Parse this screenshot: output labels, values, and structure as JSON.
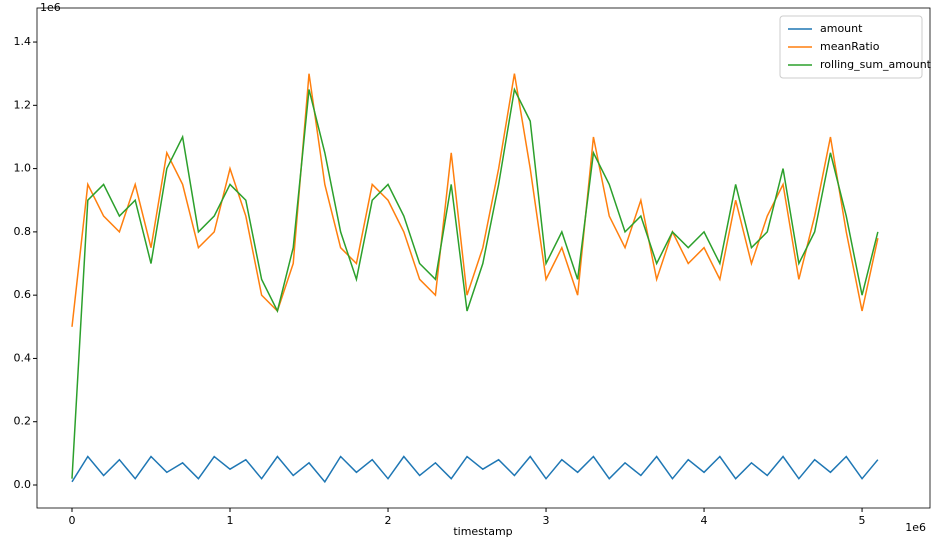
{
  "chart_data": {
    "type": "line",
    "x_label": "timestamp",
    "x_offset_label": "1e6",
    "y_offset_label": "1e6",
    "x": [
      0,
      100000,
      200000,
      300000,
      400000,
      500000,
      600000,
      700000,
      800000,
      900000,
      1000000,
      1100000,
      1200000,
      1300000,
      1400000,
      1500000,
      1600000,
      1700000,
      1800000,
      1900000,
      2000000,
      2100000,
      2200000,
      2300000,
      2400000,
      2500000,
      2600000,
      2700000,
      2800000,
      2900000,
      3000000,
      3100000,
      3200000,
      3300000,
      3400000,
      3500000,
      3600000,
      3700000,
      3800000,
      3900000,
      4000000,
      4100000,
      4200000,
      4300000,
      4400000,
      4500000,
      4600000,
      4700000,
      4800000,
      4900000,
      5000000,
      5100000
    ],
    "series": [
      {
        "name": "amount",
        "color": "#1f77b4",
        "values": [
          10000,
          90000,
          30000,
          80000,
          20000,
          90000,
          40000,
          70000,
          20000,
          90000,
          50000,
          80000,
          20000,
          90000,
          30000,
          70000,
          10000,
          90000,
          40000,
          80000,
          20000,
          90000,
          30000,
          70000,
          20000,
          90000,
          50000,
          80000,
          30000,
          90000,
          20000,
          80000,
          40000,
          90000,
          20000,
          70000,
          30000,
          90000,
          20000,
          80000,
          40000,
          90000,
          20000,
          70000,
          30000,
          90000,
          20000,
          80000,
          40000,
          90000,
          20000,
          80000
        ]
      },
      {
        "name": "meanRatio",
        "color": "#ff7f0e",
        "values": [
          500000,
          950000,
          850000,
          800000,
          950000,
          750000,
          1050000,
          950000,
          750000,
          800000,
          1000000,
          850000,
          600000,
          550000,
          700000,
          1300000,
          950000,
          750000,
          700000,
          950000,
          900000,
          800000,
          650000,
          600000,
          1050000,
          600000,
          750000,
          1000000,
          1300000,
          1000000,
          650000,
          750000,
          600000,
          1100000,
          850000,
          750000,
          900000,
          650000,
          800000,
          700000,
          750000,
          650000,
          900000,
          700000,
          850000,
          950000,
          650000,
          850000,
          1100000,
          800000,
          550000,
          780000
        ]
      },
      {
        "name": "rolling_sum_amount",
        "color": "#2ca02c",
        "values": [
          20000,
          900000,
          950000,
          850000,
          900000,
          700000,
          1000000,
          1100000,
          800000,
          850000,
          950000,
          900000,
          650000,
          550000,
          750000,
          1250000,
          1050000,
          800000,
          650000,
          900000,
          950000,
          850000,
          700000,
          650000,
          950000,
          550000,
          700000,
          950000,
          1250000,
          1150000,
          700000,
          800000,
          650000,
          1050000,
          950000,
          800000,
          850000,
          700000,
          800000,
          750000,
          800000,
          700000,
          950000,
          750000,
          800000,
          1000000,
          700000,
          800000,
          1050000,
          850000,
          600000,
          800000
        ]
      }
    ],
    "xlim": [
      -221500,
      5430000
    ],
    "ylim": [
      -72700,
      1507600
    ],
    "xticks": [
      {
        "value": 0,
        "label": "0"
      },
      {
        "value": 1000000,
        "label": "1"
      },
      {
        "value": 2000000,
        "label": "2"
      },
      {
        "value": 3000000,
        "label": "3"
      },
      {
        "value": 4000000,
        "label": "4"
      },
      {
        "value": 5000000,
        "label": "5"
      }
    ],
    "yticks": [
      {
        "value": 0,
        "label": "0.0"
      },
      {
        "value": 200000,
        "label": "0.2"
      },
      {
        "value": 400000,
        "label": "0.4"
      },
      {
        "value": 600000,
        "label": "0.6"
      },
      {
        "value": 800000,
        "label": "0.8"
      },
      {
        "value": 1000000,
        "label": "1.0"
      },
      {
        "value": 1200000,
        "label": "1.2"
      },
      {
        "value": 1400000,
        "label": "1.4"
      }
    ],
    "legend": "upper right"
  }
}
